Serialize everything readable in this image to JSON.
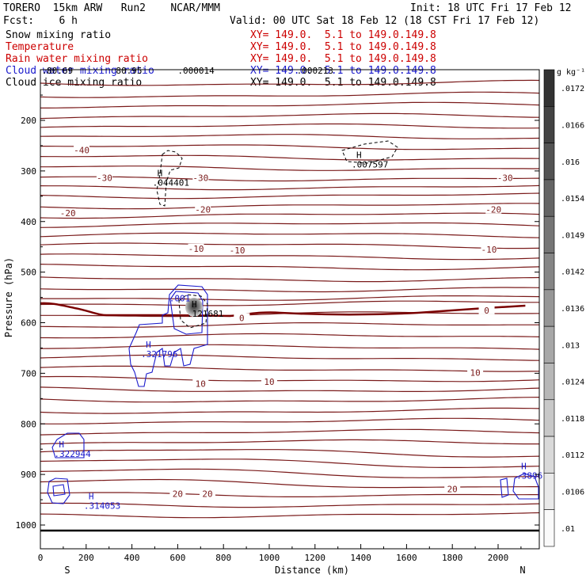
{
  "header": {
    "model": "TORERO  15km ARW   Run2    NCAR/MMM",
    "init": "Init: 18 UTC Fri 17 Feb 12",
    "fcst": "Fcst:    6 h",
    "valid": "Valid: 00 UTC Sat 18 Feb 12 (18 CST Fri 17 Feb 12)",
    "fields": [
      {
        "name": "Snow mixing ratio",
        "color": "#000000",
        "xy": ""
      },
      {
        "name": "Temperature",
        "color": "#cc0000",
        "xy": "XY= 149.0.  5.1 to 149.0.149.8"
      },
      {
        "name": "Rain water mixing ratio",
        "color": "#cc0000",
        "xy": "XY= 149.0.  5.1 to 149.0.149.8"
      },
      {
        "name": "Cloud water mixing ratio",
        "color": "#1a1acc",
        "xy": "XY= 149.0.  5.1 to 149.0.149.8"
      },
      {
        "name": "Cloud ice mixing ratio",
        "color": "#000000",
        "xy": "XY= 149.0.  5.1 to 149.0.149.8"
      }
    ],
    "snow_xy": "XY= 149.0.  5.1 to 149.0.149.8"
  },
  "chart_data": {
    "type": "contour cross-section",
    "xlabel": "Distance (km)",
    "ylabel": "Pressure (hPa)",
    "xlim": [
      0,
      2170
    ],
    "ylim": [
      1050,
      100
    ],
    "x_ticks": [
      0,
      200,
      400,
      600,
      800,
      1000,
      1200,
      1400,
      1600,
      1800,
      2000
    ],
    "y_ticks": [
      200,
      300,
      400,
      500,
      600,
      700,
      800,
      900,
      1000
    ],
    "end_labels": {
      "left": "S",
      "right": "N"
    },
    "colorbar": {
      "unit": "g kg⁻¹",
      "levels": [
        ".0172",
        ".0166",
        ".016",
        ".0154",
        ".0149",
        ".0142",
        ".0136",
        ".013",
        ".0124",
        ".0118",
        ".0112",
        ".0106",
        ".01"
      ]
    },
    "temperature_labels": [
      {
        "text": "-40",
        "x": 180,
        "p": 260
      },
      {
        "text": "-30",
        "x": 280,
        "p": 315
      },
      {
        "text": "-30",
        "x": 700,
        "p": 315
      },
      {
        "text": "-30",
        "x": 2030,
        "p": 315
      },
      {
        "text": "-20",
        "x": 120,
        "p": 385
      },
      {
        "text": "-20",
        "x": 710,
        "p": 378
      },
      {
        "text": "-20",
        "x": 1980,
        "p": 378
      },
      {
        "text": "-10",
        "x": 680,
        "p": 455
      },
      {
        "text": "-10",
        "x": 860,
        "p": 458
      },
      {
        "text": "-10",
        "x": 1960,
        "p": 457
      },
      {
        "text": "0",
        "x": 880,
        "p": 592
      },
      {
        "text": "0",
        "x": 1950,
        "p": 577
      },
      {
        "text": "10",
        "x": 700,
        "p": 722
      },
      {
        "text": "10",
        "x": 1000,
        "p": 718
      },
      {
        "text": "10",
        "x": 1900,
        "p": 700
      },
      {
        "text": "20",
        "x": 600,
        "p": 940
      },
      {
        "text": "20",
        "x": 730,
        "p": 940
      },
      {
        "text": "20",
        "x": 1800,
        "p": 930
      }
    ],
    "maxima": [
      {
        "text": ".044401",
        "x": 490,
        "p": 326,
        "color": "#000000"
      },
      {
        "text": ".007597",
        "x": 1360,
        "p": 290,
        "color": "#000000"
      },
      {
        "text": ".121681",
        "x": 640,
        "p": 585,
        "color": "#000000"
      },
      {
        "text": ".321796",
        "x": 440,
        "p": 665,
        "color": "#1a1acc"
      },
      {
        "text": ".322944",
        "x": 60,
        "p": 862,
        "color": "#1a1acc"
      },
      {
        "text": ".314053",
        "x": 190,
        "p": 965,
        "color": "#1a1acc"
      },
      {
        "text": ".3896",
        "x": 2080,
        "p": 905,
        "color": "#1a1acc"
      }
    ],
    "top_labels": [
      {
        "text": ".80.69",
        "x": 5,
        "p": 108
      },
      {
        "text": "80.95",
        "x": 330,
        "p": 108
      },
      {
        "text": ".000014",
        "x": 600,
        "p": 108
      },
      {
        "text": ".000213",
        "x": 1120,
        "p": 108
      }
    ],
    "cloud_label": {
      "text": ".001",
      "x": 570,
      "p": 558
    }
  }
}
